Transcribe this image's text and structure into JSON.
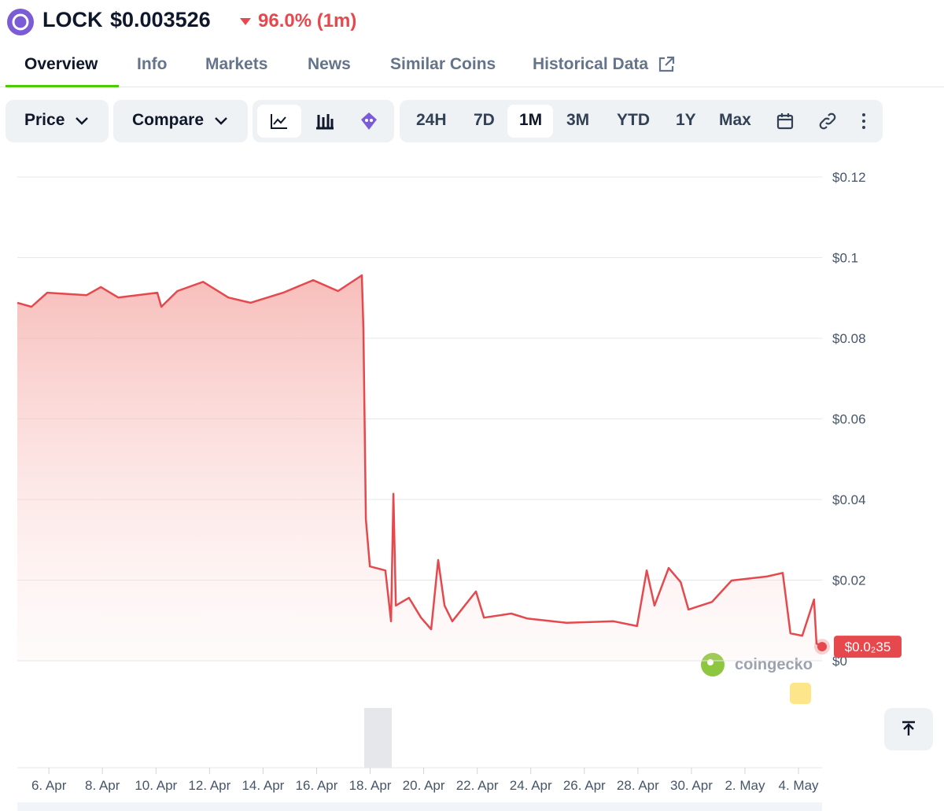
{
  "header": {
    "name": "LOCK",
    "price": "$0.003526",
    "change": "96.0% (1m)"
  },
  "tabs": [
    "Overview",
    "Info",
    "Markets",
    "News",
    "Similar Coins",
    "Historical Data"
  ],
  "toolbar": {
    "price": "Price",
    "compare": "Compare",
    "ranges": [
      "24H",
      "7D",
      "1M",
      "3M",
      "YTD",
      "1Y",
      "Max"
    ]
  },
  "watermark": "coingecko",
  "chart_data": {
    "type": "line",
    "x": [
      4.82,
      5.35,
      5.94,
      7.41,
      7.94,
      8.59,
      10.05,
      10.2,
      10.8,
      11.76,
      12.7,
      13.53,
      14.75,
      15.87,
      16.8,
      17.69,
      17.75,
      17.84,
      17.99,
      18.57,
      18.78,
      18.87,
      18.96,
      19.45,
      19.9,
      20.28,
      20.54,
      20.78,
      21.07,
      21.95,
      22.25,
      23.27,
      23.86,
      25.33,
      27.09,
      27.97,
      28.33,
      28.62,
      29.15,
      29.6,
      29.89,
      30.77,
      31.5,
      32.82,
      33.41,
      33.7,
      34.14,
      34.58,
      34.67,
      34.88
    ],
    "series": [
      {
        "name": "Price",
        "color": "#e5484d",
        "values": [
          0.0888,
          0.0878,
          0.0913,
          0.0907,
          0.0927,
          0.0901,
          0.0913,
          0.0878,
          0.0917,
          0.094,
          0.0901,
          0.0888,
          0.0913,
          0.0944,
          0.0917,
          0.0956,
          0.082,
          0.0351,
          0.0234,
          0.0224,
          0.0098,
          0.0414,
          0.0137,
          0.0156,
          0.0107,
          0.0078,
          0.025,
          0.0137,
          0.0098,
          0.0172,
          0.0107,
          0.0117,
          0.0105,
          0.0094,
          0.0098,
          0.0086,
          0.0224,
          0.0137,
          0.023,
          0.0195,
          0.0127,
          0.0146,
          0.0199,
          0.0209,
          0.0218,
          0.0068,
          0.0062,
          0.0152,
          0.0043,
          0.0035
        ]
      }
    ],
    "last_label": "$0.0₂35",
    "xlim": [
      4.82,
      34.88
    ],
    "xticks": [
      {
        "value": 6,
        "label": "6. Apr"
      },
      {
        "value": 8,
        "label": "8. Apr"
      },
      {
        "value": 10,
        "label": "10. Apr"
      },
      {
        "value": 12,
        "label": "12. Apr"
      },
      {
        "value": 14,
        "label": "14. Apr"
      },
      {
        "value": 16,
        "label": "16. Apr"
      },
      {
        "value": 18,
        "label": "18. Apr"
      },
      {
        "value": 20,
        "label": "20. Apr"
      },
      {
        "value": 22,
        "label": "22. Apr"
      },
      {
        "value": 24,
        "label": "24. Apr"
      },
      {
        "value": 26,
        "label": "26. Apr"
      },
      {
        "value": 28,
        "label": "28. Apr"
      },
      {
        "value": 30,
        "label": "30. Apr"
      },
      {
        "value": 32,
        "label": "2. May"
      },
      {
        "value": 34,
        "label": "4. May"
      }
    ],
    "ylim": [
      0,
      0.12
    ],
    "yticks": [
      {
        "value": 0,
        "label": "$0"
      },
      {
        "value": 0.02,
        "label": "$0.02"
      },
      {
        "value": 0.04,
        "label": "$0.04"
      },
      {
        "value": 0.06,
        "label": "$0.06"
      },
      {
        "value": 0.08,
        "label": "$0.08"
      },
      {
        "value": 0.1,
        "label": "$0.1"
      },
      {
        "value": 0.12,
        "label": "$0.12"
      }
    ],
    "grid": true
  }
}
